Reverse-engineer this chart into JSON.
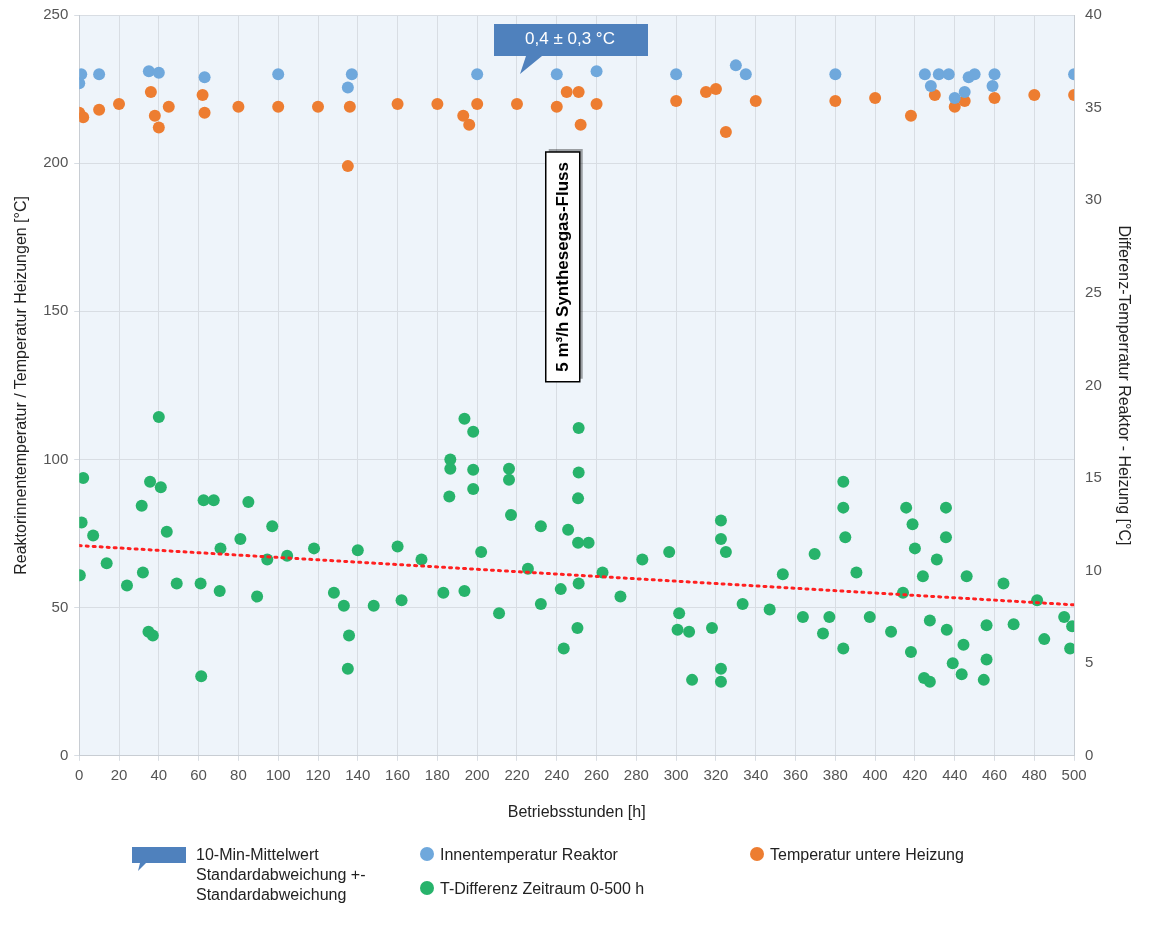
{
  "chart_data": {
    "type": "scatter",
    "xlabel": "Betriebsstunden [h]",
    "ylabel": "Reaktorinnentemperatur / Temperatur Heizungen [°C]",
    "y2label": "Differenz-Temperratur Reaktor - Heizung [°C]",
    "xlim": [
      0,
      500
    ],
    "xticks": [
      0,
      20,
      40,
      60,
      80,
      100,
      120,
      140,
      160,
      180,
      200,
      220,
      240,
      260,
      280,
      300,
      320,
      340,
      360,
      380,
      400,
      420,
      440,
      460,
      480,
      500
    ],
    "ylim": [
      0,
      250
    ],
    "yticks": [
      0,
      50,
      100,
      150,
      200,
      250
    ],
    "y2lim": [
      0,
      40
    ],
    "y2ticks": [
      0,
      5,
      10,
      15,
      20,
      25,
      30,
      35,
      40
    ],
    "grid": true,
    "legend": "bottom",
    "marker": "circle",
    "annotations": [
      "0,4 ± 0,3 °C",
      "5 m³/h Synthesegas-Fluss",
      "10-Min-Mittelwert Standardabweichung +- Standardabweichung"
    ],
    "series": [
      {
        "name": "Innentemperatur Reaktor",
        "color": "#6fa8dc",
        "x": [
          0,
          1,
          10,
          35,
          40,
          63,
          100,
          135,
          137,
          200,
          240,
          260,
          300,
          330,
          335,
          380,
          425,
          428,
          432,
          437,
          440,
          445,
          447,
          450,
          459,
          460,
          500
        ],
        "values": [
          227,
          230,
          230,
          231,
          230.5,
          229,
          230,
          225.5,
          230,
          230,
          230,
          231,
          230,
          233,
          230,
          230,
          230,
          226,
          230,
          230,
          222,
          224,
          229,
          230,
          226,
          230,
          230
        ]
      },
      {
        "name": "Temperatur untere Heizung",
        "color": "#ed7d31",
        "x": [
          0,
          2,
          10,
          20,
          36,
          38,
          40,
          45,
          62,
          63,
          80,
          100,
          120,
          135,
          136,
          160,
          180,
          193,
          196,
          200,
          220,
          240,
          245,
          251,
          252,
          260,
          300,
          315,
          320,
          325,
          340,
          380,
          400,
          418,
          430,
          440,
          445,
          460,
          480,
          500
        ],
        "values": [
          217,
          215.5,
          218,
          220,
          224,
          216,
          212,
          219,
          223,
          217,
          219,
          219,
          219,
          199,
          219,
          220,
          220,
          216,
          213,
          220,
          220,
          219,
          224,
          224,
          213,
          220,
          221,
          224,
          225,
          210.5,
          221,
          221,
          222,
          216,
          223,
          219,
          221,
          222,
          223,
          223
        ]
      },
      {
        "name": "T-Differenz Zeitraum 0-500 h",
        "color": "#27b36b",
        "axis": "y2",
        "x": [
          0.3,
          1.2,
          2,
          7,
          13.8,
          24,
          32,
          31.4,
          35.6,
          34.8,
          37,
          40,
          41,
          44,
          49,
          61,
          61.3,
          62.5,
          67.6,
          71,
          70.6,
          81,
          85,
          89.4,
          94.5,
          97,
          104.5,
          118,
          128,
          133,
          135.6,
          135,
          140,
          148,
          160,
          162,
          172,
          183,
          186.5,
          186.5,
          186,
          193.6,
          198,
          198,
          198,
          193.6,
          202,
          211,
          216,
          216,
          217,
          225.5,
          232,
          232,
          242,
          243.5,
          245.7,
          250.4,
          251,
          251,
          250.7,
          250.7,
          251,
          256,
          263,
          272,
          283,
          296.5,
          301.5,
          300.7,
          306.5,
          308,
          318,
          322.5,
          322.5,
          322.5,
          322.5,
          325,
          333.4,
          347,
          353.6,
          363.7,
          369.6,
          373.8,
          377,
          384,
          384,
          384,
          385,
          390.6,
          397.3,
          408,
          414,
          415.6,
          418.8,
          420,
          418,
          424,
          424.6,
          427.5,
          427.5,
          431,
          435.6,
          435.6,
          436,
          439,
          443.5,
          444.4,
          446,
          456,
          454.6,
          456,
          464.5,
          469.6,
          481.4,
          485,
          495,
          498,
          499
        ],
        "values": [
          9.75,
          12.6,
          15.0,
          11.9,
          10.4,
          9.2,
          9.9,
          13.5,
          14.8,
          6.7,
          6.5,
          18.3,
          14.5,
          12.1,
          9.3,
          9.3,
          4.3,
          13.8,
          13.8,
          11.2,
          8.9,
          11.7,
          13.7,
          8.6,
          10.6,
          12.4,
          10.8,
          11.2,
          8.8,
          8.1,
          6.5,
          4.7,
          11.1,
          8.1,
          11.3,
          8.4,
          10.6,
          8.8,
          16.0,
          15.5,
          14.0,
          18.2,
          17.5,
          15.45,
          14.4,
          8.9,
          11.0,
          7.7,
          15.5,
          14.9,
          13.0,
          10.1,
          12.4,
          8.2,
          9.0,
          5.8,
          12.2,
          6.9,
          17.7,
          15.3,
          13.9,
          11.5,
          9.3,
          11.5,
          9.9,
          8.6,
          10.6,
          11.0,
          7.7,
          6.8,
          6.7,
          4.1,
          6.9,
          12.7,
          11.7,
          4.7,
          4.0,
          11.0,
          8.2,
          7.9,
          9.8,
          7.5,
          10.9,
          6.6,
          7.5,
          14.8,
          13.4,
          5.8,
          11.8,
          9.9,
          7.5,
          6.7,
          8.8,
          13.4,
          12.5,
          11.2,
          5.6,
          9.7,
          4.2,
          4.0,
          7.3,
          10.6,
          13.4,
          11.8,
          6.8,
          5.0,
          4.4,
          6.0,
          9.7,
          7.05,
          4.1,
          5.2,
          9.3,
          7.1,
          8.4,
          6.3,
          7.5,
          5.8,
          7.0
        ]
      },
      {
        "type": "line",
        "color": "#ff2020",
        "axis": "y2",
        "line_style": "dotted",
        "marker": "none",
        "x": [
          0,
          500
        ],
        "values": [
          11.35,
          8.15
        ]
      }
    ]
  }
}
